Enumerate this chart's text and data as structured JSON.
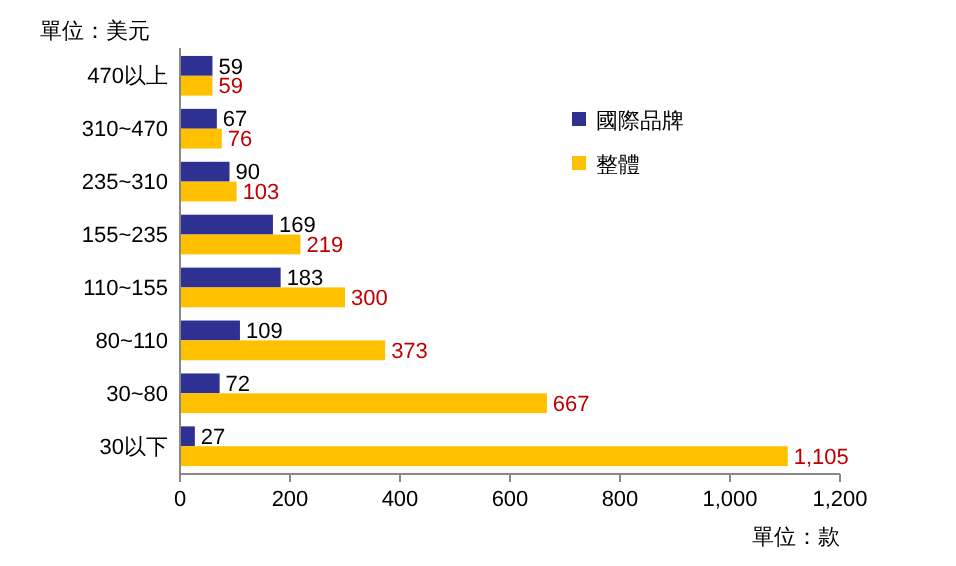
{
  "chart_data": {
    "type": "bar",
    "orientation": "horizontal",
    "categories": [
      "470以上",
      "310~470",
      "235~310",
      "155~235",
      "110~155",
      "80~110",
      "30~80",
      "30以下"
    ],
    "series": [
      {
        "name": "國際品牌",
        "color": "#2e3192",
        "values": [
          59,
          67,
          90,
          169,
          183,
          109,
          72,
          27
        ],
        "value_labels": [
          "59",
          "67",
          "90",
          "169",
          "183",
          "109",
          "72",
          "27"
        ]
      },
      {
        "name": "整體",
        "color": "#ffc000",
        "values": [
          59,
          76,
          103,
          219,
          300,
          373,
          667,
          1105
        ],
        "value_labels": [
          "59",
          "76",
          "103",
          "219",
          "300",
          "373",
          "667",
          "1,105"
        ]
      }
    ],
    "xlim": [
      0,
      1200
    ],
    "xticks": [
      0,
      200,
      400,
      600,
      800,
      {
        "value": 1000,
        "label": "1,000"
      },
      {
        "value": 1200,
        "label": "1,200"
      }
    ],
    "annotations": [
      "單位：美元",
      "單位：款"
    ],
    "legend": "top right",
    "grid": false
  }
}
